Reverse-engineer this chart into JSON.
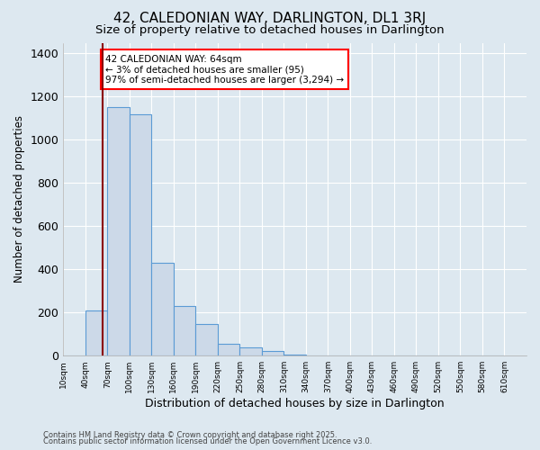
{
  "title": "42, CALEDONIAN WAY, DARLINGTON, DL1 3RJ",
  "subtitle": "Size of property relative to detached houses in Darlington",
  "xlabel": "Distribution of detached houses by size in Darlington",
  "ylabel": "Number of detached properties",
  "bar_values": [
    0,
    210,
    1150,
    1120,
    430,
    230,
    145,
    55,
    40,
    20,
    5,
    2,
    0,
    0,
    0,
    0,
    0,
    0,
    0,
    0
  ],
  "bar_edges": [
    10,
    40,
    70,
    100,
    130,
    160,
    190,
    220,
    250,
    280,
    310,
    340,
    370,
    400,
    430,
    460,
    490,
    520,
    550,
    580,
    610
  ],
  "bar_color": "#ccd9e8",
  "bar_edgecolor": "#5b9bd5",
  "vline_x": 64,
  "vline_color": "#8b0000",
  "ylim": [
    0,
    1450
  ],
  "annotation_text": "42 CALEDONIAN WAY: 64sqm\n← 3% of detached houses are smaller (95)\n97% of semi-detached houses are larger (3,294) →",
  "bg_color": "#dde8f0",
  "plot_bg_color": "#dde8f0",
  "footnote1": "Contains HM Land Registry data © Crown copyright and database right 2025.",
  "footnote2": "Contains public sector information licensed under the Open Government Licence v3.0.",
  "title_fontsize": 11,
  "subtitle_fontsize": 9.5,
  "xlabel_fontsize": 9,
  "ylabel_fontsize": 8.5,
  "tick_labels": [
    "10sqm",
    "40sqm",
    "70sqm",
    "100sqm",
    "130sqm",
    "160sqm",
    "190sqm",
    "220sqm",
    "250sqm",
    "280sqm",
    "310sqm",
    "340sqm",
    "370sqm",
    "400sqm",
    "430sqm",
    "460sqm",
    "490sqm",
    "520sqm",
    "550sqm",
    "580sqm",
    "610sqm"
  ]
}
